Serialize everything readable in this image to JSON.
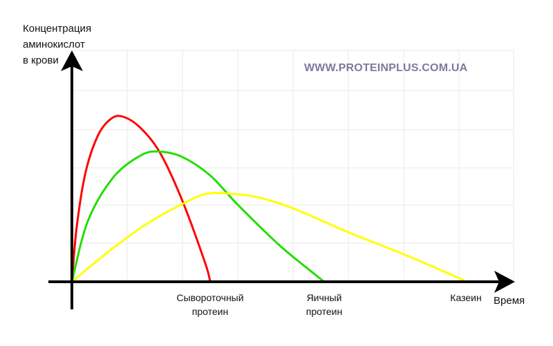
{
  "chart_data": {
    "type": "line",
    "title": "",
    "ylabel": [
      "Концентрация",
      "аминокислот",
      "в крови"
    ],
    "xlabel": "Время",
    "watermark": "WWW.PROTEINPLUS.COM.UA",
    "xlim": [
      0,
      800
    ],
    "ylim": [
      0,
      100
    ],
    "grid": true,
    "series": [
      {
        "name": "Сывороточный протеин",
        "label_lines": [
          "Сывороточный",
          "протеин"
        ],
        "color": "#ff0000",
        "points": [
          [
            0,
            0
          ],
          [
            7,
            30
          ],
          [
            20,
            60
          ],
          [
            38,
            80
          ],
          [
            57,
            89
          ],
          [
            74,
            90
          ],
          [
            99,
            84
          ],
          [
            128,
            70
          ],
          [
            160,
            44
          ],
          [
            193,
            10
          ],
          [
            200,
            0
          ]
        ]
      },
      {
        "name": "Яичный протеин",
        "label_lines": [
          "Яичный",
          "протеин"
        ],
        "color": "#22dd00",
        "points": [
          [
            0,
            0
          ],
          [
            23,
            33
          ],
          [
            60,
            57
          ],
          [
            100,
            69
          ],
          [
            127,
            71
          ],
          [
            160,
            68
          ],
          [
            200,
            58
          ],
          [
            240,
            42
          ],
          [
            300,
            20
          ],
          [
            345,
            6
          ],
          [
            365,
            0
          ]
        ]
      },
      {
        "name": "Казеин",
        "label_lines": [
          "Казеин"
        ],
        "color": "#ffff00",
        "points": [
          [
            0,
            0
          ],
          [
            55,
            17
          ],
          [
            110,
            32
          ],
          [
            163,
            43
          ],
          [
            195,
            48
          ],
          [
            230,
            48
          ],
          [
            270,
            46
          ],
          [
            320,
            40
          ],
          [
            400,
            27
          ],
          [
            480,
            15
          ],
          [
            560,
            2
          ],
          [
            570,
            0
          ]
        ]
      }
    ]
  }
}
